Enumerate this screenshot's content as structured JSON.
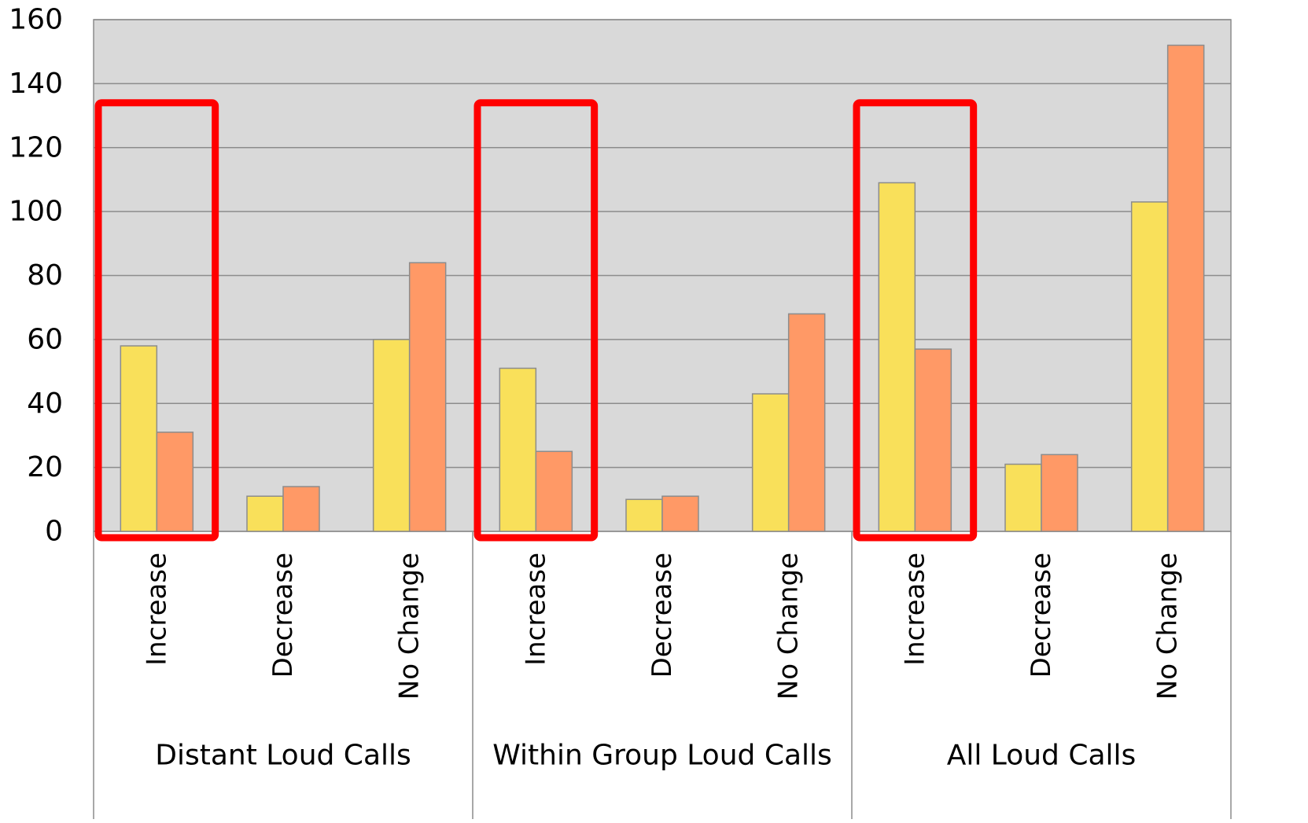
{
  "chart_data": {
    "type": "bar",
    "title": "",
    "xlabel": "",
    "ylabel": "",
    "ylim": [
      0,
      160
    ],
    "yticks": [
      0,
      20,
      40,
      60,
      80,
      100,
      120,
      140,
      160
    ],
    "grid": true,
    "legend": "none",
    "groups": [
      {
        "label": "Distant Loud Calls",
        "categories": [
          "Increase",
          "Decrease",
          "No Change"
        ]
      },
      {
        "label": "Within Group Loud Calls",
        "categories": [
          "Increase",
          "Decrease",
          "No Change"
        ]
      },
      {
        "label": "All Loud Calls",
        "categories": [
          "Increase",
          "Decrease",
          "No Change"
        ]
      }
    ],
    "categories": [
      "Increase",
      "Decrease",
      "No Change",
      "Increase",
      "Decrease",
      "No Change",
      "Increase",
      "Decrease",
      "No Change"
    ],
    "series": [
      {
        "color": "#F9E05A",
        "values": [
          58,
          11,
          60,
          51,
          10,
          43,
          109,
          21,
          103
        ]
      },
      {
        "color": "#FF9966",
        "values": [
          31,
          14,
          84,
          25,
          11,
          68,
          57,
          24,
          152
        ]
      }
    ],
    "highlighted_categories": [
      0,
      3,
      6
    ],
    "colors": {
      "plot_background": "#D9D9D9",
      "gridline": "#8C8C8C",
      "highlight_box": "#FF0000",
      "bar_border": "#8C8C8C"
    }
  }
}
